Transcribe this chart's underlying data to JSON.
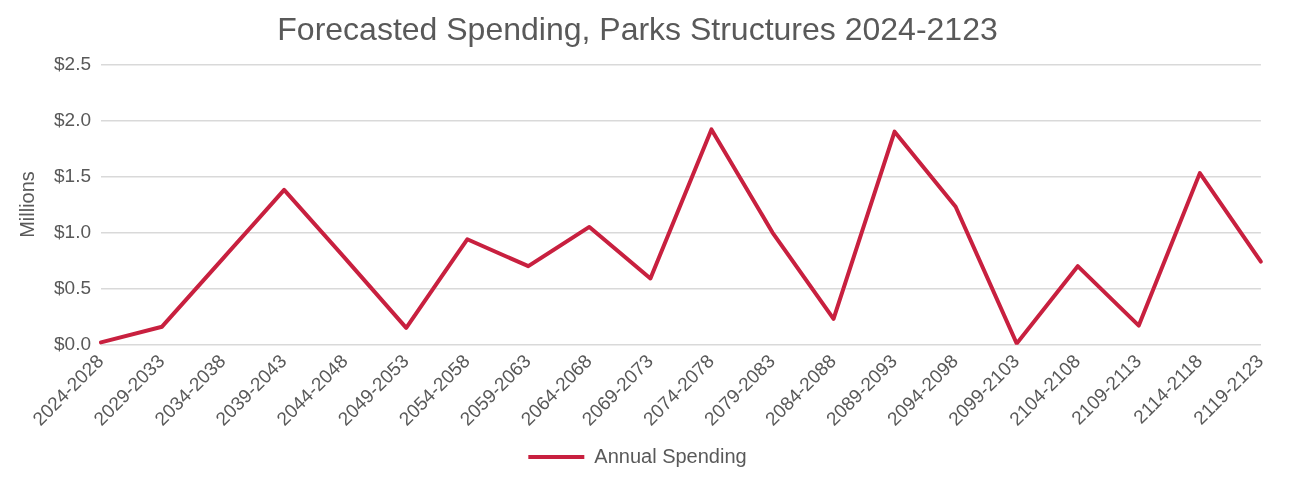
{
  "chart_data": {
    "type": "line",
    "title": "Forecasted Spending, Parks Structures 2024-2123",
    "ylabel": "Millions",
    "categories": [
      "2024-2028",
      "2029-2033",
      "2034-2038",
      "2039-2043",
      "2044-2048",
      "2049-2053",
      "2054-2058",
      "2059-2063",
      "2064-2068",
      "2069-2073",
      "2074-2078",
      "2079-2083",
      "2084-2088",
      "2089-2093",
      "2094-2098",
      "2099-2103",
      "2104-2108",
      "2109-2113",
      "2114-2118",
      "2119-2123"
    ],
    "series": [
      {
        "name": "Annual Spending",
        "color": "#c8203f",
        "values": [
          0.02,
          0.16,
          0.77,
          1.38,
          0.77,
          0.15,
          0.94,
          0.7,
          1.05,
          0.59,
          1.92,
          1.0,
          0.23,
          1.9,
          1.23,
          0.01,
          0.7,
          0.17,
          1.53,
          0.74
        ]
      }
    ],
    "ylim": [
      0,
      2.5
    ],
    "yticks": [
      {
        "value": 0,
        "label": "$0.0"
      },
      {
        "value": 0.5,
        "label": "$0.5"
      },
      {
        "value": 1,
        "label": "$1.0"
      },
      {
        "value": 1.5,
        "label": "$1.5"
      },
      {
        "value": 2,
        "label": "$2.0"
      },
      {
        "value": 2.5,
        "label": "$2.5"
      }
    ],
    "grid": "y",
    "legend": "bottom",
    "marker": "none",
    "line_style": "solid"
  }
}
